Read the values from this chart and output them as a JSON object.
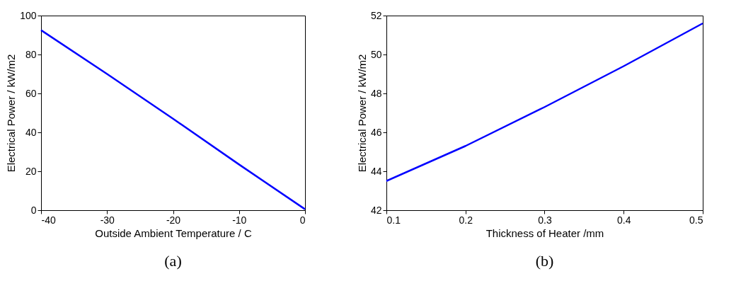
{
  "chart_data": [
    {
      "type": "line",
      "xlabel": "Outside Ambient Temperature / C",
      "ylabel": "Electrical Power / kW/m2",
      "annotations": [
        "(a)"
      ],
      "x": [
        -40,
        -30,
        -20,
        -10,
        0
      ],
      "series": [
        {
          "color": "#0000ff",
          "values": [
            92.5,
            70,
            47,
            23.5,
            0.5
          ]
        }
      ],
      "xlim": [
        -40,
        0
      ],
      "xticks": [
        -40,
        -30,
        -20,
        -10,
        0
      ],
      "ylim": [
        0,
        100
      ],
      "yticks": [
        0,
        20,
        40,
        60,
        80,
        100
      ],
      "grid": false
    },
    {
      "type": "line",
      "xlabel": "Thickness of Heater /mm",
      "ylabel": "Electrical Power / kW/m2",
      "annotations": [
        "(b)"
      ],
      "x": [
        0.1,
        0.2,
        0.3,
        0.4,
        0.5
      ],
      "series": [
        {
          "color": "#0000ff",
          "values": [
            43.5,
            45.3,
            47.3,
            49.4,
            51.6
          ]
        }
      ],
      "xlim": [
        0.1,
        0.5
      ],
      "xticks": [
        0.1,
        0.2,
        0.3,
        0.4,
        0.5
      ],
      "ylim": [
        42,
        52
      ],
      "yticks": [
        42,
        44,
        46,
        48,
        50,
        52
      ],
      "grid": false
    }
  ]
}
